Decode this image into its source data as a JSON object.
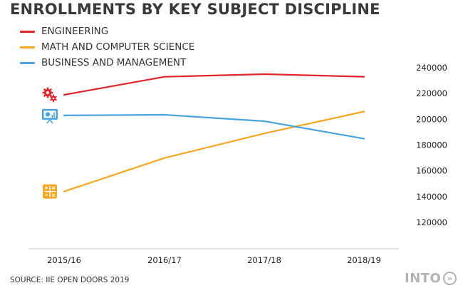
{
  "title": "ENROLLMENTS BY KEY SUBJECT DISCIPLINE",
  "source": "SOURCE: IIE OPEN DOORS 2019",
  "brand": {
    "text": "INTO",
    "icon": "double-chevron-right-icon",
    "color": "#b3b3b3"
  },
  "chart_data": {
    "type": "line",
    "title": "ENROLLMENTS BY KEY SUBJECT DISCIPLINE",
    "categories": [
      "2015/16",
      "2016/17",
      "2017/18",
      "2018/19"
    ],
    "ylim": [
      100000,
      240000
    ],
    "yticks": [
      "120000",
      "140000",
      "160000",
      "180000",
      "200000",
      "220000",
      "240000"
    ],
    "ytick_values": [
      120000,
      140000,
      160000,
      180000,
      200000,
      220000,
      240000
    ],
    "y_axis_side": "right",
    "grid": false,
    "legend_position": "top-left",
    "series": [
      {
        "name": "ENGINEERING",
        "color": "#e0262b",
        "icon": "gears-icon",
        "values": [
          219000,
          233000,
          235000,
          233000
        ]
      },
      {
        "name": "MATH AND COMPUTER SCIENCE",
        "color": "#f5a623",
        "icon": "calculator-icon",
        "values": [
          144000,
          170000,
          189000,
          206000
        ]
      },
      {
        "name": "BUSINESS AND MANAGEMENT",
        "color": "#4aa3db",
        "icon": "presentation-chart-icon",
        "values": [
          203000,
          203500,
          198500,
          185000
        ]
      }
    ]
  }
}
